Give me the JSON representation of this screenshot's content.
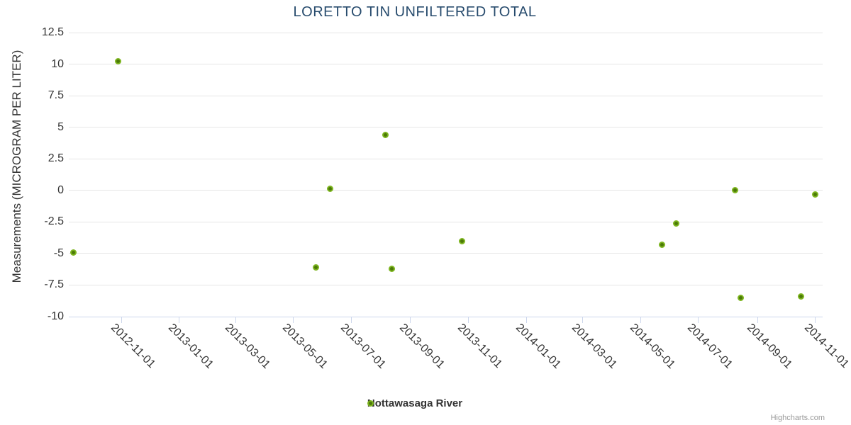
{
  "chart_data": {
    "type": "scatter",
    "title": "LORETTO TIN UNFILTERED TOTAL",
    "xlabel": "",
    "ylabel": "Measurements (MICROGRAM PER LITER)",
    "grid": "horizontal-only",
    "legend_position": "bottom-center",
    "ylim": [
      -10,
      12.5
    ],
    "yticks": [
      12.5,
      10,
      7.5,
      5,
      2.5,
      0,
      -2.5,
      -5,
      -7.5,
      -10
    ],
    "xlim": [
      "2012-09-07",
      "2014-11-09"
    ],
    "xticks": [
      "2012-11-01",
      "2013-01-01",
      "2013-03-01",
      "2013-05-01",
      "2013-07-01",
      "2013-09-01",
      "2013-11-01",
      "2014-01-01",
      "2014-03-01",
      "2014-05-01",
      "2014-07-01",
      "2014-09-01",
      "2014-11-01"
    ],
    "series": [
      {
        "name": "Nottawasaga River",
        "color": "#7cb41e",
        "marker_center_color": "#4c7a08",
        "points": [
          {
            "x": "2012-09-12",
            "y": -4.9
          },
          {
            "x": "2012-10-29",
            "y": 10.2
          },
          {
            "x": "2013-05-25",
            "y": -6.1
          },
          {
            "x": "2013-06-09",
            "y": 0.1
          },
          {
            "x": "2013-08-06",
            "y": 4.4
          },
          {
            "x": "2013-08-13",
            "y": -6.2
          },
          {
            "x": "2013-10-26",
            "y": -4.0
          },
          {
            "x": "2014-05-24",
            "y": -4.3
          },
          {
            "x": "2014-06-08",
            "y": -2.6
          },
          {
            "x": "2014-08-09",
            "y": 0.0
          },
          {
            "x": "2014-08-15",
            "y": -8.5
          },
          {
            "x": "2014-10-17",
            "y": -8.4
          },
          {
            "x": "2014-11-01",
            "y": -0.3
          }
        ]
      }
    ]
  },
  "credits": {
    "text": "Highcharts.com"
  }
}
